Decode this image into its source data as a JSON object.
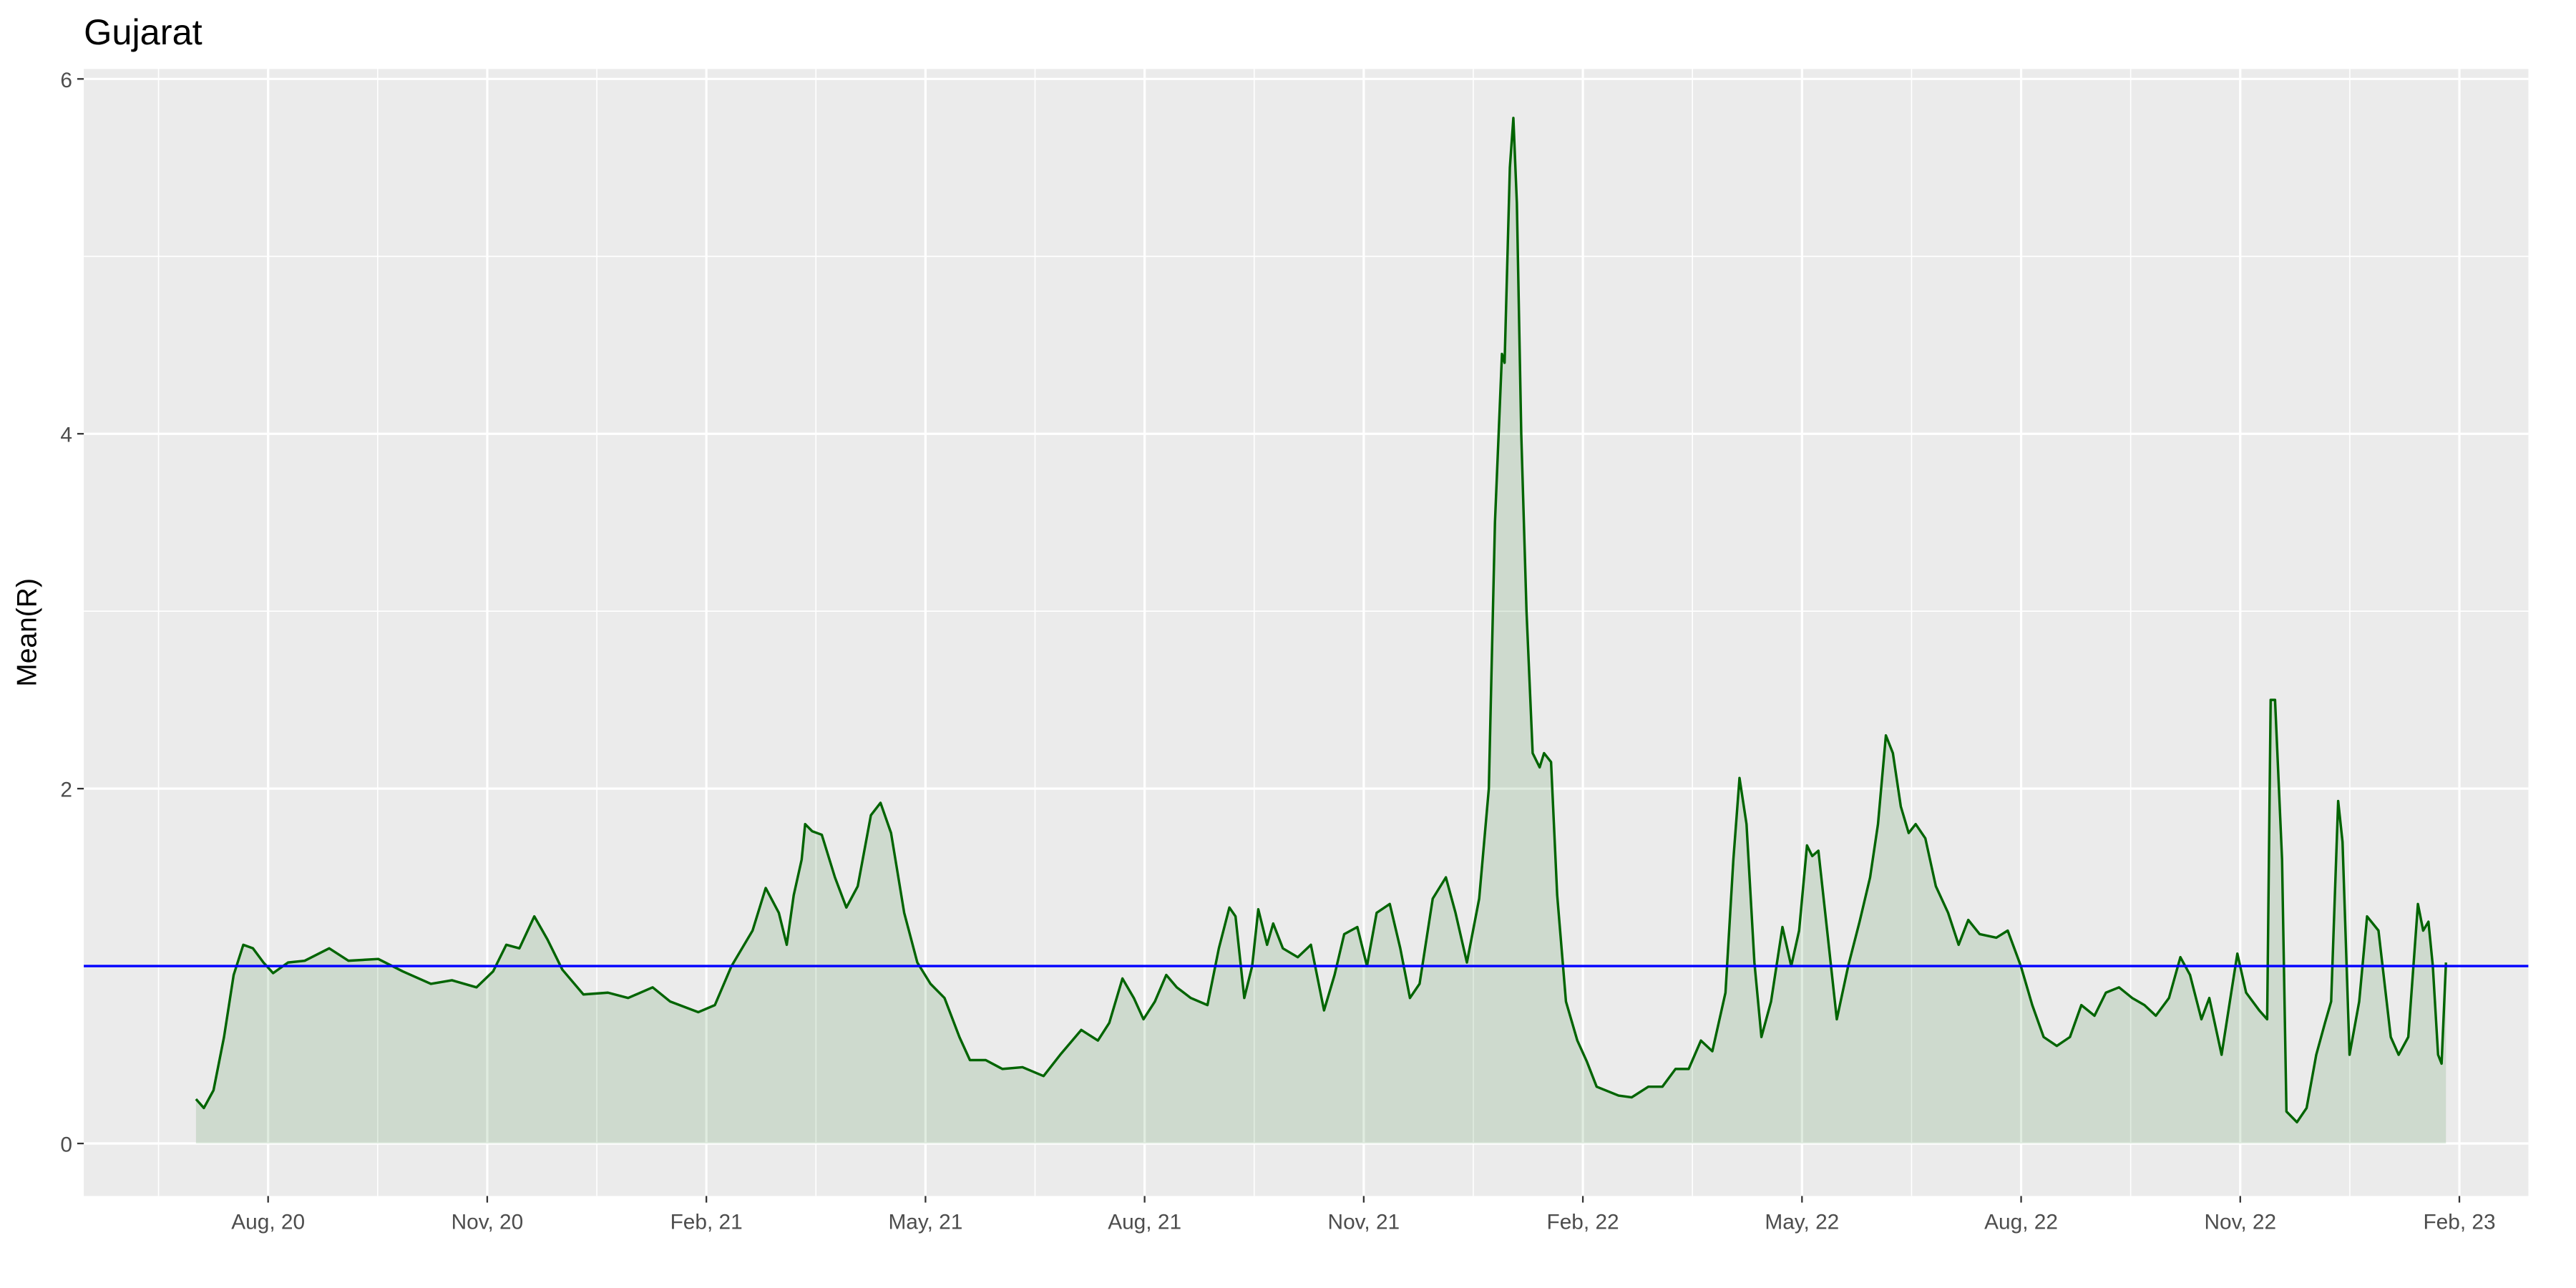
{
  "chart_data": {
    "type": "line",
    "title": "Gujarat",
    "ylabel": "Mean(R)",
    "xlim": [
      2020.373,
      2023.162
    ],
    "ylim": [
      -0.296,
      6.056
    ],
    "xticks": [
      {
        "value": 2020.5833,
        "label": "Aug, 20"
      },
      {
        "value": 2020.8333,
        "label": "Nov, 20"
      },
      {
        "value": 2021.0833,
        "label": "Feb, 21"
      },
      {
        "value": 2021.3333,
        "label": "May, 21"
      },
      {
        "value": 2021.5833,
        "label": "Aug, 21"
      },
      {
        "value": 2021.8333,
        "label": "Nov, 21"
      },
      {
        "value": 2022.0833,
        "label": "Feb, 22"
      },
      {
        "value": 2022.3333,
        "label": "May, 22"
      },
      {
        "value": 2022.5833,
        "label": "Aug, 22"
      },
      {
        "value": 2022.8333,
        "label": "Nov, 22"
      },
      {
        "value": 2023.0833,
        "label": "Feb, 23"
      }
    ],
    "yticks": [
      0,
      2,
      4,
      6
    ],
    "grid": true,
    "hline": 1,
    "hline_color": "#0000ff",
    "series": [
      {
        "color": "#006400",
        "fill": "#006400",
        "x": [
          2020.501,
          2020.51,
          2020.521,
          2020.533,
          2020.544,
          2020.555,
          2020.566,
          2020.578,
          2020.589,
          2020.606,
          2020.625,
          2020.653,
          2020.675,
          2020.709,
          2020.737,
          2020.769,
          2020.793,
          2020.821,
          2020.84,
          2020.855,
          2020.87,
          2020.887,
          2020.902,
          2020.919,
          2020.943,
          2020.971,
          2020.994,
          2021.022,
          2021.042,
          2021.074,
          2021.093,
          2021.112,
          2021.136,
          2021.151,
          2021.166,
          2021.175,
          2021.183,
          2021.192,
          2021.196,
          2021.204,
          2021.215,
          2021.23,
          2021.243,
          2021.256,
          2021.271,
          2021.282,
          2021.294,
          2021.309,
          2021.324,
          2021.339,
          2021.355,
          2021.372,
          2021.384,
          2021.402,
          2021.421,
          2021.444,
          2021.468,
          2021.487,
          2021.511,
          2021.53,
          2021.543,
          2021.558,
          2021.571,
          2021.582,
          2021.595,
          2021.608,
          2021.62,
          2021.636,
          2021.655,
          2021.668,
          2021.68,
          2021.687,
          2021.697,
          2021.706,
          2021.713,
          2021.723,
          2021.73,
          2021.741,
          2021.758,
          2021.773,
          2021.788,
          2021.8,
          2021.811,
          2021.826,
          2021.837,
          2021.848,
          2021.863,
          2021.875,
          2021.886,
          2021.897,
          2021.912,
          2021.927,
          2021.938,
          2021.951,
          2021.965,
          2021.976,
          2021.983,
          2021.991,
          2021.994,
          2022.0,
          2022.004,
          2022.008,
          2022.013,
          2022.019,
          2022.026,
          2022.034,
          2022.039,
          2022.047,
          2022.054,
          2022.064,
          2022.077,
          2022.088,
          2022.099,
          2022.124,
          2022.139,
          2022.158,
          2022.174,
          2022.189,
          2022.204,
          2022.218,
          2022.231,
          2022.246,
          2022.255,
          2022.262,
          2022.27,
          2022.279,
          2022.287,
          2022.298,
          2022.311,
          2022.321,
          2022.33,
          2022.339,
          2022.345,
          2022.352,
          2022.362,
          2022.373,
          2022.386,
          2022.399,
          2022.411,
          2022.42,
          2022.429,
          2022.437,
          2022.446,
          2022.455,
          2022.463,
          2022.474,
          2022.486,
          2022.5,
          2022.512,
          2022.523,
          2022.536,
          2022.555,
          2022.568,
          2022.583,
          2022.596,
          2022.609,
          2022.624,
          2022.639,
          2022.652,
          2022.667,
          2022.68,
          2022.695,
          2022.71,
          2022.724,
          2022.737,
          2022.752,
          2022.765,
          2022.776,
          2022.789,
          2022.798,
          2022.812,
          2022.823,
          2022.83,
          2022.84,
          2022.855,
          2022.864,
          2022.868,
          2022.873,
          2022.881,
          2022.886,
          2022.898,
          2022.909,
          2022.92,
          2022.93,
          2022.937,
          2022.945,
          2022.95,
          2022.958,
          2022.969,
          2022.978,
          2022.991,
          2023.005,
          2023.014,
          2023.025,
          2023.036,
          2023.042,
          2023.048,
          2023.053,
          2023.059,
          2023.063,
          2023.068
        ],
        "values": [
          0.25,
          0.2,
          0.3,
          0.6,
          0.95,
          1.12,
          1.1,
          1.02,
          0.96,
          1.02,
          1.03,
          1.1,
          1.03,
          1.04,
          0.97,
          0.9,
          0.92,
          0.88,
          0.97,
          1.12,
          1.1,
          1.28,
          1.15,
          0.98,
          0.84,
          0.85,
          0.82,
          0.88,
          0.8,
          0.74,
          0.78,
          1.0,
          1.2,
          1.44,
          1.3,
          1.12,
          1.4,
          1.6,
          1.8,
          1.76,
          1.74,
          1.5,
          1.33,
          1.45,
          1.85,
          1.92,
          1.75,
          1.3,
          1.02,
          0.9,
          0.82,
          0.6,
          0.47,
          0.47,
          0.42,
          0.43,
          0.38,
          0.5,
          0.64,
          0.58,
          0.68,
          0.93,
          0.82,
          0.7,
          0.8,
          0.95,
          0.88,
          0.82,
          0.78,
          1.1,
          1.33,
          1.28,
          0.82,
          1.0,
          1.32,
          1.12,
          1.24,
          1.1,
          1.05,
          1.12,
          0.75,
          0.95,
          1.18,
          1.22,
          1.0,
          1.3,
          1.35,
          1.1,
          0.82,
          0.9,
          1.38,
          1.5,
          1.3,
          1.02,
          1.38,
          2.0,
          3.5,
          4.45,
          4.4,
          5.5,
          5.78,
          5.3,
          4.0,
          3.0,
          2.2,
          2.12,
          2.2,
          2.15,
          1.4,
          0.8,
          0.58,
          0.46,
          0.32,
          0.27,
          0.26,
          0.32,
          0.32,
          0.42,
          0.42,
          0.58,
          0.52,
          0.85,
          1.6,
          2.06,
          1.8,
          1.02,
          0.6,
          0.8,
          1.22,
          1.0,
          1.2,
          1.68,
          1.62,
          1.65,
          1.2,
          0.7,
          1.0,
          1.25,
          1.5,
          1.8,
          2.3,
          2.2,
          1.9,
          1.75,
          1.8,
          1.72,
          1.45,
          1.3,
          1.12,
          1.26,
          1.18,
          1.16,
          1.2,
          1.0,
          0.78,
          0.6,
          0.55,
          0.6,
          0.78,
          0.72,
          0.85,
          0.88,
          0.82,
          0.78,
          0.72,
          0.82,
          1.05,
          0.95,
          0.7,
          0.82,
          0.5,
          0.85,
          1.07,
          0.85,
          0.75,
          0.7,
          2.5,
          2.5,
          1.6,
          0.18,
          0.12,
          0.2,
          0.5,
          0.68,
          0.8,
          1.93,
          1.7,
          0.5,
          0.8,
          1.28,
          1.2,
          0.6,
          0.5,
          0.6,
          1.35,
          1.2,
          1.25,
          1.0,
          0.5,
          0.45,
          1.02
        ]
      }
    ]
  }
}
